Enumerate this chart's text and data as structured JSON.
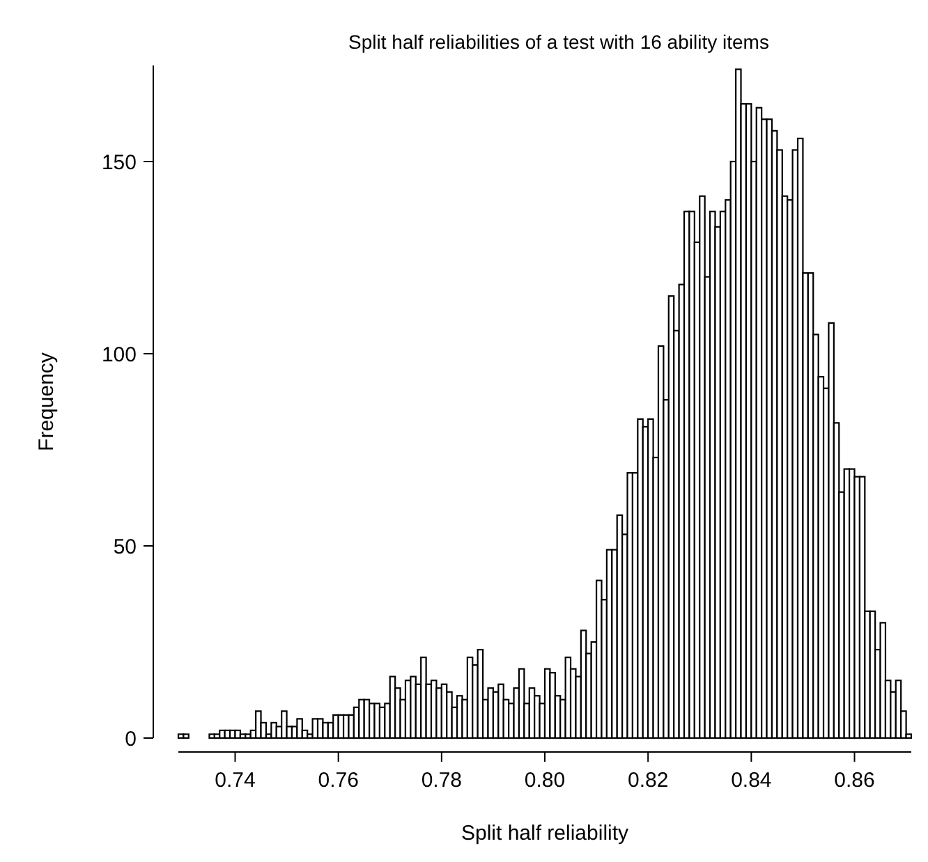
{
  "chart_data": {
    "type": "histogram",
    "title": "Split half reliabilities of a test with 16 ability items",
    "xlabel": "Split half reliability",
    "ylabel": "Frequency",
    "bins": [
      0.729,
      0.73,
      0.731,
      0.732,
      0.733,
      0.734,
      0.735,
      0.736,
      0.737,
      0.738,
      0.739,
      0.74,
      0.741,
      0.742,
      0.743,
      0.744,
      0.745,
      0.746,
      0.747,
      0.748,
      0.749,
      0.75,
      0.751,
      0.752,
      0.753,
      0.754,
      0.755,
      0.756,
      0.757,
      0.758,
      0.759,
      0.76,
      0.761,
      0.762,
      0.763,
      0.764,
      0.765,
      0.766,
      0.767,
      0.768,
      0.769,
      0.77,
      0.771,
      0.772,
      0.773,
      0.774,
      0.775,
      0.776,
      0.777,
      0.778,
      0.779,
      0.78,
      0.781,
      0.782,
      0.783,
      0.784,
      0.785,
      0.786,
      0.787,
      0.788,
      0.789,
      0.79,
      0.791,
      0.792,
      0.793,
      0.794,
      0.795,
      0.796,
      0.797,
      0.798,
      0.799,
      0.8,
      0.801,
      0.802,
      0.803,
      0.804,
      0.805,
      0.806,
      0.807,
      0.808,
      0.809,
      0.81,
      0.811,
      0.812,
      0.813,
      0.814,
      0.815,
      0.816,
      0.817,
      0.818,
      0.819,
      0.82,
      0.821,
      0.822,
      0.823,
      0.824,
      0.825,
      0.826,
      0.827,
      0.828,
      0.829,
      0.83,
      0.831,
      0.832,
      0.833,
      0.834,
      0.835,
      0.836,
      0.837,
      0.838,
      0.839,
      0.84,
      0.841,
      0.842,
      0.843,
      0.844,
      0.845,
      0.846,
      0.847,
      0.848,
      0.849,
      0.85,
      0.851,
      0.852,
      0.853,
      0.854,
      0.855,
      0.856,
      0.857,
      0.858,
      0.859,
      0.86,
      0.861,
      0.862,
      0.863,
      0.864,
      0.865,
      0.866,
      0.867,
      0.868,
      0.869,
      0.87,
      0.871
    ],
    "values": [
      1,
      1,
      0,
      0,
      0,
      0,
      1,
      1,
      2,
      2,
      2,
      2,
      1,
      1,
      2,
      7,
      4,
      1,
      4,
      3,
      7,
      3,
      3,
      5,
      2,
      1,
      5,
      5,
      4,
      4,
      6,
      6,
      6,
      6,
      8,
      10,
      10,
      9,
      9,
      8,
      9,
      16,
      13,
      10,
      15,
      16,
      14,
      21,
      14,
      15,
      13,
      14,
      12,
      8,
      11,
      10,
      21,
      19,
      23,
      10,
      13,
      12,
      14,
      10,
      9,
      13,
      18,
      9,
      13,
      11,
      9,
      18,
      17,
      11,
      10,
      21,
      18,
      16,
      28,
      22,
      25,
      41,
      36,
      49,
      49,
      58,
      53,
      69,
      69,
      83,
      81,
      83,
      73,
      102,
      88,
      115,
      106,
      118,
      137,
      137,
      129,
      141,
      120,
      137,
      133,
      137,
      140,
      150,
      174,
      165,
      165,
      150,
      164,
      161,
      161,
      158,
      153,
      141,
      140,
      153,
      156,
      121,
      121,
      105,
      94,
      91,
      108,
      82,
      64,
      70,
      70,
      68,
      68,
      33,
      33,
      23,
      30,
      15,
      12,
      15,
      7,
      1
    ],
    "color": "#ffffff",
    "xlim": [
      0.729,
      0.871
    ],
    "xticks": [
      {
        "value": 0.74,
        "label": "0.74"
      },
      {
        "value": 0.76,
        "label": "0.76"
      },
      {
        "value": 0.78,
        "label": "0.78"
      },
      {
        "value": 0.8,
        "label": "0.80"
      },
      {
        "value": 0.82,
        "label": "0.82"
      },
      {
        "value": 0.84,
        "label": "0.84"
      },
      {
        "value": 0.86,
        "label": "0.86"
      }
    ],
    "ylim": [
      0,
      175
    ],
    "yticks": [
      0,
      50,
      100,
      150
    ],
    "grid": false
  }
}
